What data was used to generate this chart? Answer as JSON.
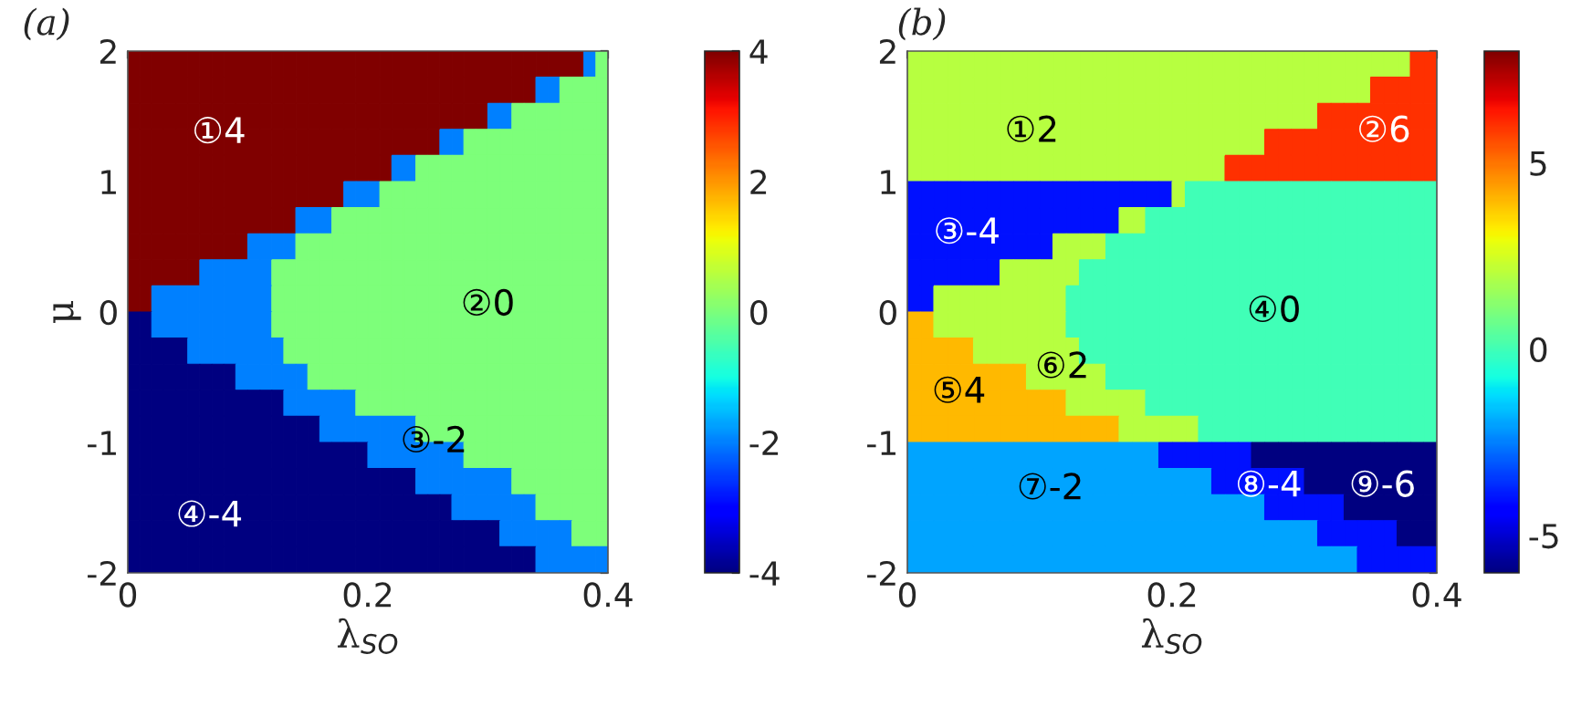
{
  "chart_data": [
    {
      "type": "heatmap",
      "title": "(a)",
      "xlabel": "λ$_{SO}$",
      "ylabel": "μ",
      "x": [
        0.005,
        0.015,
        0.025,
        0.035,
        0.045,
        0.055,
        0.065,
        0.075,
        0.085,
        0.095,
        0.105,
        0.115,
        0.125,
        0.135,
        0.145,
        0.155,
        0.165,
        0.175,
        0.185,
        0.195,
        0.205,
        0.215,
        0.225,
        0.235,
        0.245,
        0.255,
        0.265,
        0.275,
        0.285,
        0.295,
        0.305,
        0.315,
        0.325,
        0.335,
        0.345,
        0.355,
        0.365,
        0.375,
        0.385,
        0.395
      ],
      "y": [
        1.9,
        1.7,
        1.5,
        1.3,
        1.1,
        0.9,
        0.7,
        0.5,
        0.3,
        0.1,
        -0.1,
        -0.3,
        -0.5,
        -0.7,
        -0.9,
        -1.1,
        -1.3,
        -1.5,
        -1.7,
        -1.9
      ],
      "xlim": [
        0,
        0.4
      ],
      "ylim": [
        -2,
        2
      ],
      "xticks": [
        0,
        0.2,
        0.4
      ],
      "yticks": [
        -2,
        -1,
        0,
        1,
        2
      ],
      "clim": [
        -4,
        4
      ],
      "cticks": [
        -4,
        -2,
        0,
        2,
        4
      ],
      "cells": [
        [
          4,
          4,
          4,
          4,
          4,
          4,
          4,
          4,
          4,
          4,
          4,
          4,
          4,
          4,
          4,
          4,
          4,
          4,
          4,
          4,
          4,
          4,
          4,
          4,
          4,
          4,
          4,
          4,
          4,
          4,
          4,
          4,
          4,
          4,
          4,
          4,
          4,
          4,
          -2,
          0
        ],
        [
          4,
          4,
          4,
          4,
          4,
          4,
          4,
          4,
          4,
          4,
          4,
          4,
          4,
          4,
          4,
          4,
          4,
          4,
          4,
          4,
          4,
          4,
          4,
          4,
          4,
          4,
          4,
          4,
          4,
          4,
          4,
          4,
          4,
          4,
          -2,
          -2,
          0,
          0,
          0,
          0
        ],
        [
          4,
          4,
          4,
          4,
          4,
          4,
          4,
          4,
          4,
          4,
          4,
          4,
          4,
          4,
          4,
          4,
          4,
          4,
          4,
          4,
          4,
          4,
          4,
          4,
          4,
          4,
          4,
          4,
          4,
          4,
          -2,
          -2,
          0,
          0,
          0,
          0,
          0,
          0,
          0,
          0
        ],
        [
          4,
          4,
          4,
          4,
          4,
          4,
          4,
          4,
          4,
          4,
          4,
          4,
          4,
          4,
          4,
          4,
          4,
          4,
          4,
          4,
          4,
          4,
          4,
          4,
          4,
          4,
          -2,
          -2,
          0,
          0,
          0,
          0,
          0,
          0,
          0,
          0,
          0,
          0,
          0,
          0
        ],
        [
          4,
          4,
          4,
          4,
          4,
          4,
          4,
          4,
          4,
          4,
          4,
          4,
          4,
          4,
          4,
          4,
          4,
          4,
          4,
          4,
          4,
          4,
          -2,
          -2,
          0,
          0,
          0,
          0,
          0,
          0,
          0,
          0,
          0,
          0,
          0,
          0,
          0,
          0,
          0,
          0
        ],
        [
          4,
          4,
          4,
          4,
          4,
          4,
          4,
          4,
          4,
          4,
          4,
          4,
          4,
          4,
          4,
          4,
          4,
          4,
          -2,
          -2,
          -2,
          0,
          0,
          0,
          0,
          0,
          0,
          0,
          0,
          0,
          0,
          0,
          0,
          0,
          0,
          0,
          0,
          0,
          0,
          0
        ],
        [
          4,
          4,
          4,
          4,
          4,
          4,
          4,
          4,
          4,
          4,
          4,
          4,
          4,
          4,
          -2,
          -2,
          -2,
          0,
          0,
          0,
          0,
          0,
          0,
          0,
          0,
          0,
          0,
          0,
          0,
          0,
          0,
          0,
          0,
          0,
          0,
          0,
          0,
          0,
          0,
          0
        ],
        [
          4,
          4,
          4,
          4,
          4,
          4,
          4,
          4,
          4,
          4,
          -2,
          -2,
          -2,
          -2,
          0,
          0,
          0,
          0,
          0,
          0,
          0,
          0,
          0,
          0,
          0,
          0,
          0,
          0,
          0,
          0,
          0,
          0,
          0,
          0,
          0,
          0,
          0,
          0,
          0,
          0
        ],
        [
          4,
          4,
          4,
          4,
          4,
          4,
          -2,
          -2,
          -2,
          -2,
          -2,
          -2,
          0,
          0,
          0,
          0,
          0,
          0,
          0,
          0,
          0,
          0,
          0,
          0,
          0,
          0,
          0,
          0,
          0,
          0,
          0,
          0,
          0,
          0,
          0,
          0,
          0,
          0,
          0,
          0
        ],
        [
          4,
          4,
          -2,
          -2,
          -2,
          -2,
          -2,
          -2,
          -2,
          -2,
          -2,
          -2,
          0,
          0,
          0,
          0,
          0,
          0,
          0,
          0,
          0,
          0,
          0,
          0,
          0,
          0,
          0,
          0,
          0,
          0,
          0,
          0,
          0,
          0,
          0,
          0,
          0,
          0,
          0,
          0
        ],
        [
          -4,
          -4,
          -2,
          -2,
          -2,
          -2,
          -2,
          -2,
          -2,
          -2,
          -2,
          -2,
          0,
          0,
          0,
          0,
          0,
          0,
          0,
          0,
          0,
          0,
          0,
          0,
          0,
          0,
          0,
          0,
          0,
          0,
          0,
          0,
          0,
          0,
          0,
          0,
          0,
          0,
          0,
          0
        ],
        [
          -4,
          -4,
          -4,
          -4,
          -4,
          -2,
          -2,
          -2,
          -2,
          -2,
          -2,
          -2,
          -2,
          0,
          0,
          0,
          0,
          0,
          0,
          0,
          0,
          0,
          0,
          0,
          0,
          0,
          0,
          0,
          0,
          0,
          0,
          0,
          0,
          0,
          0,
          0,
          0,
          0,
          0,
          0
        ],
        [
          -4,
          -4,
          -4,
          -4,
          -4,
          -4,
          -4,
          -4,
          -4,
          -2,
          -2,
          -2,
          -2,
          -2,
          -2,
          0,
          0,
          0,
          0,
          0,
          0,
          0,
          0,
          0,
          0,
          0,
          0,
          0,
          0,
          0,
          0,
          0,
          0,
          0,
          0,
          0,
          0,
          0,
          0,
          0
        ],
        [
          -4,
          -4,
          -4,
          -4,
          -4,
          -4,
          -4,
          -4,
          -4,
          -4,
          -4,
          -4,
          -4,
          -2,
          -2,
          -2,
          -2,
          -2,
          -2,
          0,
          0,
          0,
          0,
          0,
          0,
          0,
          0,
          0,
          0,
          0,
          0,
          0,
          0,
          0,
          0,
          0,
          0,
          0,
          0,
          0
        ],
        [
          -4,
          -4,
          -4,
          -4,
          -4,
          -4,
          -4,
          -4,
          -4,
          -4,
          -4,
          -4,
          -4,
          -4,
          -4,
          -4,
          -2,
          -2,
          -2,
          -2,
          -2,
          -2,
          -2,
          -2,
          0,
          0,
          0,
          0,
          0,
          0,
          0,
          0,
          0,
          0,
          0,
          0,
          0,
          0,
          0,
          0
        ],
        [
          -4,
          -4,
          -4,
          -4,
          -4,
          -4,
          -4,
          -4,
          -4,
          -4,
          -4,
          -4,
          -4,
          -4,
          -4,
          -4,
          -4,
          -4,
          -4,
          -4,
          -2,
          -2,
          -2,
          -2,
          -2,
          -2,
          -2,
          -2,
          0,
          0,
          0,
          0,
          0,
          0,
          0,
          0,
          0,
          0,
          0,
          0
        ],
        [
          -4,
          -4,
          -4,
          -4,
          -4,
          -4,
          -4,
          -4,
          -4,
          -4,
          -4,
          -4,
          -4,
          -4,
          -4,
          -4,
          -4,
          -4,
          -4,
          -4,
          -4,
          -4,
          -4,
          -4,
          -2,
          -2,
          -2,
          -2,
          -2,
          -2,
          -2,
          -2,
          0,
          0,
          0,
          0,
          0,
          0,
          0,
          0
        ],
        [
          -4,
          -4,
          -4,
          -4,
          -4,
          -4,
          -4,
          -4,
          -4,
          -4,
          -4,
          -4,
          -4,
          -4,
          -4,
          -4,
          -4,
          -4,
          -4,
          -4,
          -4,
          -4,
          -4,
          -4,
          -4,
          -4,
          -4,
          -2,
          -2,
          -2,
          -2,
          -2,
          -2,
          -2,
          0,
          0,
          0,
          0,
          0,
          0
        ],
        [
          -4,
          -4,
          -4,
          -4,
          -4,
          -4,
          -4,
          -4,
          -4,
          -4,
          -4,
          -4,
          -4,
          -4,
          -4,
          -4,
          -4,
          -4,
          -4,
          -4,
          -4,
          -4,
          -4,
          -4,
          -4,
          -4,
          -4,
          -4,
          -4,
          -4,
          -4,
          -2,
          -2,
          -2,
          -2,
          -2,
          -2,
          0,
          0,
          0
        ],
        [
          -4,
          -4,
          -4,
          -4,
          -4,
          -4,
          -4,
          -4,
          -4,
          -4,
          -4,
          -4,
          -4,
          -4,
          -4,
          -4,
          -4,
          -4,
          -4,
          -4,
          -4,
          -4,
          -4,
          -4,
          -4,
          -4,
          -4,
          -4,
          -4,
          -4,
          -4,
          -4,
          -4,
          -4,
          -2,
          -2,
          -2,
          -2,
          -2,
          -2
        ]
      ],
      "annotations": [
        "①4",
        "②0",
        "③-2",
        "④-4"
      ]
    },
    {
      "type": "heatmap",
      "title": "(b)",
      "xlabel": "λ$_{SO}$",
      "x": [
        0.005,
        0.015,
        0.025,
        0.035,
        0.045,
        0.055,
        0.065,
        0.075,
        0.085,
        0.095,
        0.105,
        0.115,
        0.125,
        0.135,
        0.145,
        0.155,
        0.165,
        0.175,
        0.185,
        0.195,
        0.205,
        0.215,
        0.225,
        0.235,
        0.245,
        0.255,
        0.265,
        0.275,
        0.285,
        0.295,
        0.305,
        0.315,
        0.325,
        0.335,
        0.345,
        0.355,
        0.365,
        0.375,
        0.385,
        0.395
      ],
      "y": [
        1.9,
        1.7,
        1.5,
        1.3,
        1.1,
        0.9,
        0.7,
        0.5,
        0.3,
        0.1,
        -0.1,
        -0.3,
        -0.5,
        -0.7,
        -0.9,
        -1.1,
        -1.3,
        -1.5,
        -1.7,
        -1.9
      ],
      "xlim": [
        0,
        0.4
      ],
      "ylim": [
        -2,
        2
      ],
      "xticks": [
        0,
        0.2,
        0.4
      ],
      "yticks": [
        -2,
        -1,
        0,
        1,
        2
      ],
      "clim": [
        -6,
        8
      ],
      "cticks": [
        -5,
        0,
        5
      ],
      "cells": [
        [
          2,
          2,
          2,
          2,
          2,
          2,
          2,
          2,
          2,
          2,
          2,
          2,
          2,
          2,
          2,
          2,
          2,
          2,
          2,
          2,
          2,
          2,
          2,
          2,
          2,
          2,
          2,
          2,
          2,
          2,
          2,
          2,
          2,
          2,
          2,
          2,
          2,
          2,
          6,
          6
        ],
        [
          2,
          2,
          2,
          2,
          2,
          2,
          2,
          2,
          2,
          2,
          2,
          2,
          2,
          2,
          2,
          2,
          2,
          2,
          2,
          2,
          2,
          2,
          2,
          2,
          2,
          2,
          2,
          2,
          2,
          2,
          2,
          2,
          2,
          2,
          2,
          6,
          6,
          6,
          6,
          6
        ],
        [
          2,
          2,
          2,
          2,
          2,
          2,
          2,
          2,
          2,
          2,
          2,
          2,
          2,
          2,
          2,
          2,
          2,
          2,
          2,
          2,
          2,
          2,
          2,
          2,
          2,
          2,
          2,
          2,
          2,
          2,
          2,
          6,
          6,
          6,
          6,
          6,
          6,
          6,
          6,
          6
        ],
        [
          2,
          2,
          2,
          2,
          2,
          2,
          2,
          2,
          2,
          2,
          2,
          2,
          2,
          2,
          2,
          2,
          2,
          2,
          2,
          2,
          2,
          2,
          2,
          2,
          2,
          2,
          2,
          6,
          6,
          6,
          6,
          6,
          6,
          6,
          6,
          6,
          6,
          6,
          6,
          6
        ],
        [
          2,
          2,
          2,
          2,
          2,
          2,
          2,
          2,
          2,
          2,
          2,
          2,
          2,
          2,
          2,
          2,
          2,
          2,
          2,
          2,
          2,
          2,
          2,
          2,
          6,
          6,
          6,
          6,
          6,
          6,
          6,
          6,
          6,
          6,
          6,
          6,
          6,
          6,
          6,
          6
        ],
        [
          -4,
          -4,
          -4,
          -4,
          -4,
          -4,
          -4,
          -4,
          -4,
          -4,
          -4,
          -4,
          -4,
          -4,
          -4,
          -4,
          -4,
          -4,
          -4,
          -4,
          2,
          0,
          0,
          0,
          0,
          0,
          0,
          0,
          0,
          0,
          0,
          0,
          0,
          0,
          0,
          0,
          0,
          0,
          0,
          0
        ],
        [
          -4,
          -4,
          -4,
          -4,
          -4,
          -4,
          -4,
          -4,
          -4,
          -4,
          -4,
          -4,
          -4,
          -4,
          -4,
          -4,
          2,
          2,
          0,
          0,
          0,
          0,
          0,
          0,
          0,
          0,
          0,
          0,
          0,
          0,
          0,
          0,
          0,
          0,
          0,
          0,
          0,
          0,
          0,
          0
        ],
        [
          -4,
          -4,
          -4,
          -4,
          -4,
          -4,
          -4,
          -4,
          -4,
          -4,
          -4,
          2,
          2,
          2,
          2,
          0,
          0,
          0,
          0,
          0,
          0,
          0,
          0,
          0,
          0,
          0,
          0,
          0,
          0,
          0,
          0,
          0,
          0,
          0,
          0,
          0,
          0,
          0,
          0,
          0
        ],
        [
          -4,
          -4,
          -4,
          -4,
          -4,
          -4,
          -4,
          2,
          2,
          2,
          2,
          2,
          2,
          0,
          0,
          0,
          0,
          0,
          0,
          0,
          0,
          0,
          0,
          0,
          0,
          0,
          0,
          0,
          0,
          0,
          0,
          0,
          0,
          0,
          0,
          0,
          0,
          0,
          0,
          0
        ],
        [
          -4,
          -4,
          2,
          2,
          2,
          2,
          2,
          2,
          2,
          2,
          2,
          2,
          0,
          0,
          0,
          0,
          0,
          0,
          0,
          0,
          0,
          0,
          0,
          0,
          0,
          0,
          0,
          0,
          0,
          0,
          0,
          0,
          0,
          0,
          0,
          0,
          0,
          0,
          0,
          0
        ],
        [
          4,
          4,
          2,
          2,
          2,
          2,
          2,
          2,
          2,
          2,
          2,
          2,
          0,
          0,
          0,
          0,
          0,
          0,
          0,
          0,
          0,
          0,
          0,
          0,
          0,
          0,
          0,
          0,
          0,
          0,
          0,
          0,
          0,
          0,
          0,
          0,
          0,
          0,
          0,
          0
        ],
        [
          4,
          4,
          4,
          4,
          4,
          2,
          2,
          2,
          2,
          2,
          2,
          2,
          2,
          0,
          0,
          0,
          0,
          0,
          0,
          0,
          0,
          0,
          0,
          0,
          0,
          0,
          0,
          0,
          0,
          0,
          0,
          0,
          0,
          0,
          0,
          0,
          0,
          0,
          0,
          0
        ],
        [
          4,
          4,
          4,
          4,
          4,
          4,
          4,
          4,
          4,
          2,
          2,
          2,
          2,
          2,
          2,
          0,
          0,
          0,
          0,
          0,
          0,
          0,
          0,
          0,
          0,
          0,
          0,
          0,
          0,
          0,
          0,
          0,
          0,
          0,
          0,
          0,
          0,
          0,
          0,
          0
        ],
        [
          4,
          4,
          4,
          4,
          4,
          4,
          4,
          4,
          4,
          4,
          4,
          4,
          2,
          2,
          2,
          2,
          2,
          2,
          0,
          0,
          0,
          0,
          0,
          0,
          0,
          0,
          0,
          0,
          0,
          0,
          0,
          0,
          0,
          0,
          0,
          0,
          0,
          0,
          0,
          0
        ],
        [
          4,
          4,
          4,
          4,
          4,
          4,
          4,
          4,
          4,
          4,
          4,
          4,
          4,
          4,
          4,
          4,
          2,
          2,
          2,
          2,
          2,
          2,
          0,
          0,
          0,
          0,
          0,
          0,
          0,
          0,
          0,
          0,
          0,
          0,
          0,
          0,
          0,
          0,
          0,
          0
        ],
        [
          -2,
          -2,
          -2,
          -2,
          -2,
          -2,
          -2,
          -2,
          -2,
          -2,
          -2,
          -2,
          -2,
          -2,
          -2,
          -2,
          -2,
          -2,
          -2,
          -4,
          -4,
          -4,
          -4,
          -4,
          -4,
          -4,
          -6,
          -6,
          -6,
          -6,
          -6,
          -6,
          -6,
          -6,
          -6,
          -6,
          -6,
          -6,
          -6,
          -6
        ],
        [
          -2,
          -2,
          -2,
          -2,
          -2,
          -2,
          -2,
          -2,
          -2,
          -2,
          -2,
          -2,
          -2,
          -2,
          -2,
          -2,
          -2,
          -2,
          -2,
          -2,
          -2,
          -2,
          -2,
          -4,
          -4,
          -4,
          -4,
          -4,
          -4,
          -4,
          -6,
          -6,
          -6,
          -6,
          -6,
          -6,
          -6,
          -6,
          -6,
          -6
        ],
        [
          -2,
          -2,
          -2,
          -2,
          -2,
          -2,
          -2,
          -2,
          -2,
          -2,
          -2,
          -2,
          -2,
          -2,
          -2,
          -2,
          -2,
          -2,
          -2,
          -2,
          -2,
          -2,
          -2,
          -2,
          -2,
          -2,
          -2,
          -4,
          -4,
          -4,
          -4,
          -4,
          -4,
          -6,
          -6,
          -6,
          -6,
          -6,
          -6,
          -6
        ],
        [
          -2,
          -2,
          -2,
          -2,
          -2,
          -2,
          -2,
          -2,
          -2,
          -2,
          -2,
          -2,
          -2,
          -2,
          -2,
          -2,
          -2,
          -2,
          -2,
          -2,
          -2,
          -2,
          -2,
          -2,
          -2,
          -2,
          -2,
          -2,
          -2,
          -2,
          -2,
          -4,
          -4,
          -4,
          -4,
          -4,
          -4,
          -6,
          -6,
          -6
        ],
        [
          -2,
          -2,
          -2,
          -2,
          -2,
          -2,
          -2,
          -2,
          -2,
          -2,
          -2,
          -2,
          -2,
          -2,
          -2,
          -2,
          -2,
          -2,
          -2,
          -2,
          -2,
          -2,
          -2,
          -2,
          -2,
          -2,
          -2,
          -2,
          -2,
          -2,
          -2,
          -2,
          -2,
          -2,
          -4,
          -4,
          -4,
          -4,
          -4,
          -4
        ]
      ],
      "annotations": [
        "①2",
        "②6",
        "③-4",
        "④0",
        "⑤4",
        "⑥2",
        "⑦-2",
        "⑧-4",
        "⑨-6"
      ]
    }
  ]
}
